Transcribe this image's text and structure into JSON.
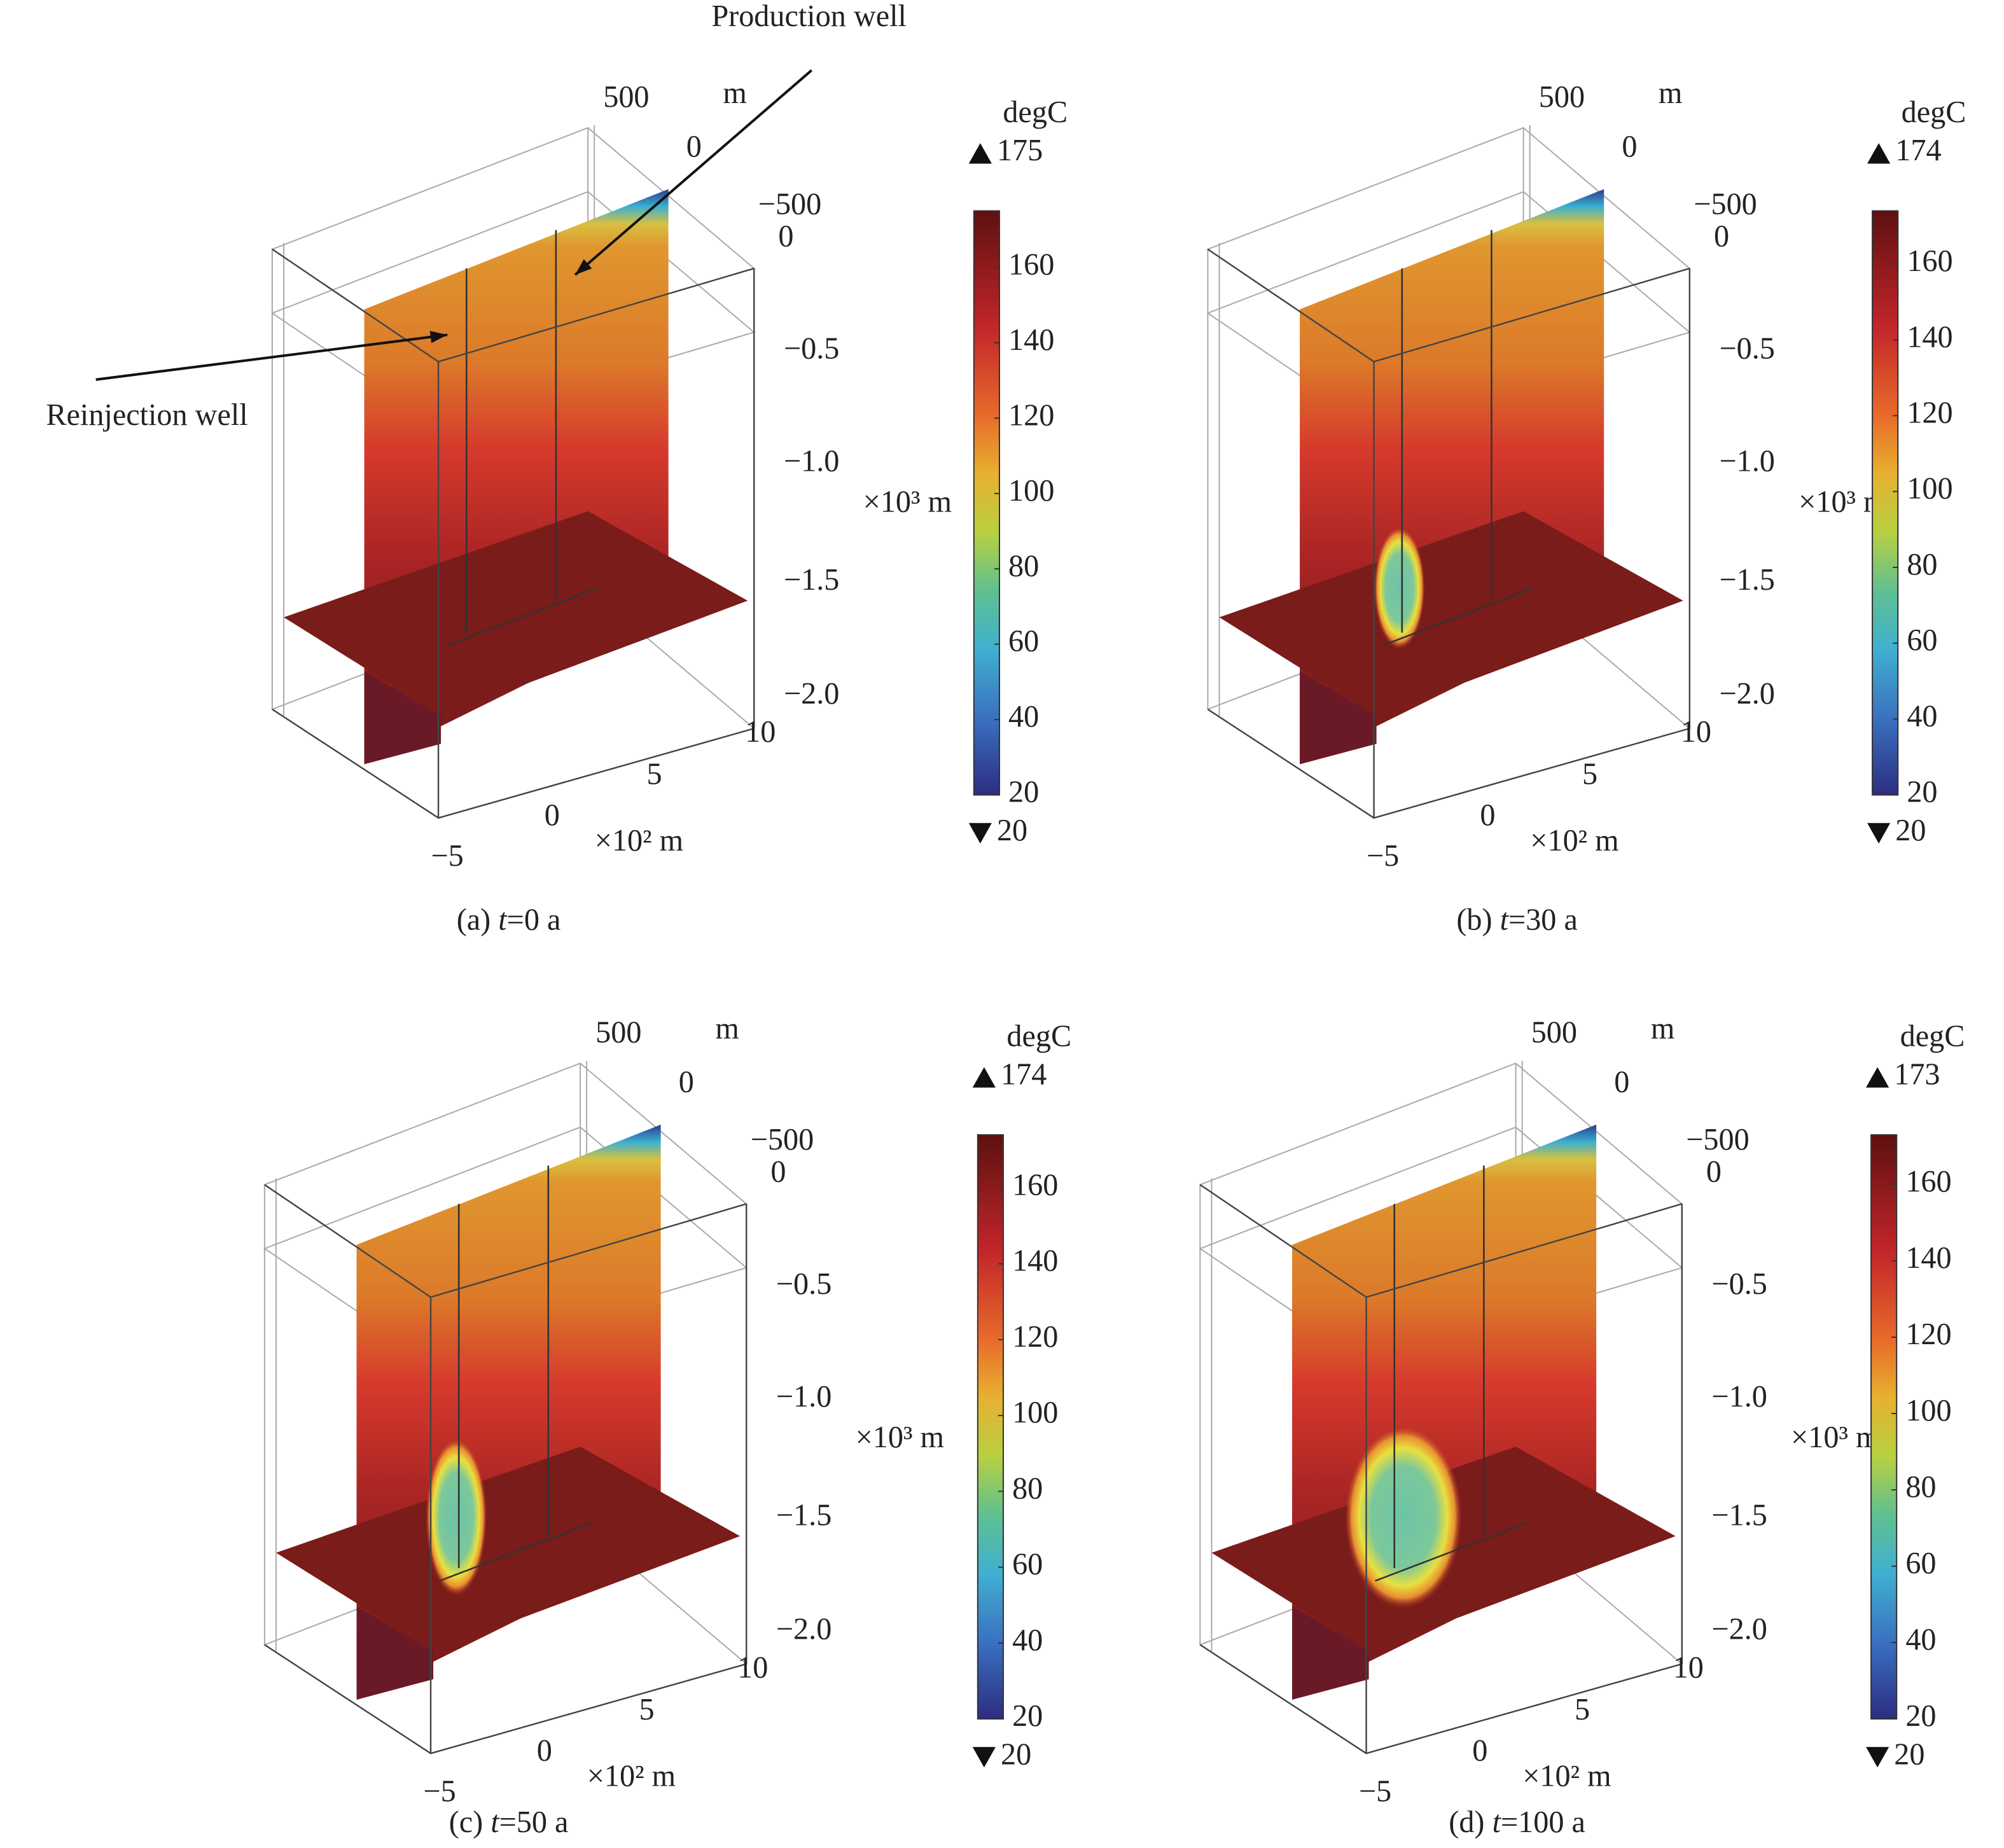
{
  "annotations": {
    "production_well": "Production well",
    "reinjection_well": "Reinjection well"
  },
  "axes": {
    "y_ticks": [
      "500",
      "0",
      "−500"
    ],
    "y_unit": "m",
    "z_ticks": [
      "0",
      "−0.5",
      "−1.0",
      "−1.5",
      "−2.0"
    ],
    "z_unit": "×10³ m",
    "x_ticks": [
      "10",
      "5",
      "0",
      "−5"
    ],
    "x_unit": "×10² m"
  },
  "panels": [
    {
      "caption": {
        "label": "(a)",
        "variable": "t",
        "rest": "=0 a"
      },
      "colorbar": {
        "unit": "degC",
        "max": 175,
        "min": 20,
        "ticks": [
          20,
          40,
          60,
          80,
          100,
          120,
          140,
          160
        ]
      }
    },
    {
      "caption": {
        "label": "(b)",
        "variable": "t",
        "rest": "=30 a"
      },
      "colorbar": {
        "unit": "degC",
        "max": 174,
        "min": 20,
        "ticks": [
          20,
          40,
          60,
          80,
          100,
          120,
          140,
          160
        ]
      }
    },
    {
      "caption": {
        "label": "(c)",
        "variable": "t",
        "rest": "=50 a"
      },
      "colorbar": {
        "unit": "degC",
        "max": 174,
        "min": 20,
        "ticks": [
          20,
          40,
          60,
          80,
          100,
          120,
          140,
          160
        ]
      }
    },
    {
      "caption": {
        "label": "(d)",
        "variable": "t",
        "rest": "=100 a"
      },
      "colorbar": {
        "unit": "degC",
        "max": 173,
        "min": 20,
        "ticks": [
          20,
          40,
          60,
          80,
          100,
          120,
          140,
          160
        ]
      }
    }
  ]
}
